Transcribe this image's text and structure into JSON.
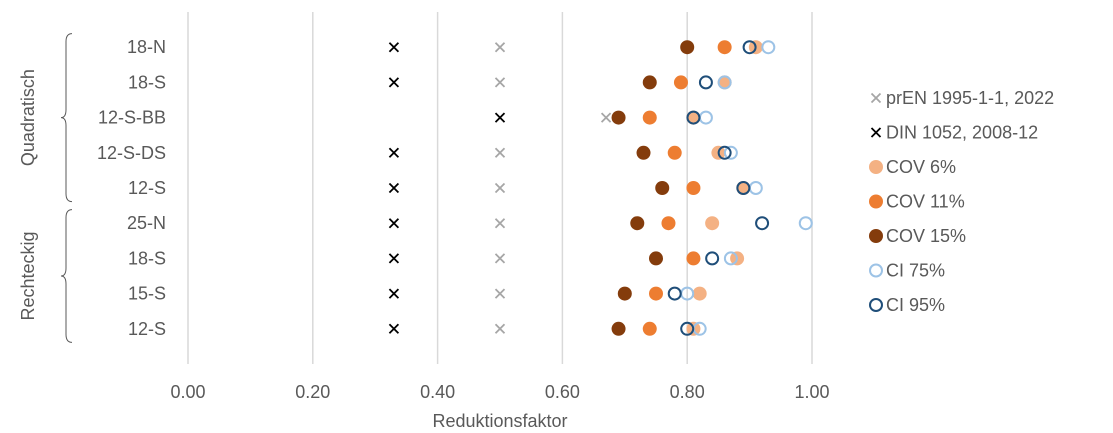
{
  "chart_data": {
    "type": "scatter",
    "title": "",
    "xlabel": "Reduktionsfaktor",
    "ylabel": "",
    "xlim": [
      0,
      1
    ],
    "xticks": [
      "0.00",
      "0.20",
      "0.40",
      "0.60",
      "0.80",
      "1.00"
    ],
    "xtick_values": [
      0,
      0.2,
      0.4,
      0.6,
      0.8,
      1.0
    ],
    "categories": [
      "18-N",
      "18-S",
      "12-S-BB",
      "12-S-DS",
      "12-S",
      "25-N",
      "18-S",
      "15-S",
      "12-S"
    ],
    "groups": [
      {
        "label": "Quadratisch",
        "from": 0,
        "to": 4
      },
      {
        "label": "Rechteckig",
        "from": 5,
        "to": 8
      }
    ],
    "grid": "vertical",
    "legend_position": "right",
    "series": [
      {
        "name": "prEN 1995-1-1, 2022",
        "marker": "x",
        "color": "#a6a6a6",
        "values": [
          0.5,
          0.5,
          0.67,
          0.5,
          0.5,
          0.5,
          0.5,
          0.5,
          0.5
        ]
      },
      {
        "name": "DIN 1052, 2008-12",
        "marker": "x",
        "color": "#000000",
        "values": [
          0.33,
          0.33,
          0.5,
          0.33,
          0.33,
          0.33,
          0.33,
          0.33,
          0.33
        ]
      },
      {
        "name": "COV 6%",
        "marker": "filled-circle",
        "color": "#f4b183",
        "values": [
          0.91,
          0.86,
          0.81,
          0.85,
          0.89,
          0.84,
          0.88,
          0.82,
          0.81
        ]
      },
      {
        "name": "COV 11%",
        "marker": "filled-circle",
        "color": "#ed7d31",
        "values": [
          0.86,
          0.79,
          0.74,
          0.78,
          0.81,
          0.77,
          0.81,
          0.75,
          0.74
        ]
      },
      {
        "name": "COV 15%",
        "marker": "filled-circle",
        "color": "#843c0c",
        "values": [
          0.8,
          0.74,
          0.69,
          0.73,
          0.76,
          0.72,
          0.75,
          0.7,
          0.69
        ]
      },
      {
        "name": "CI 75%",
        "marker": "open-circle",
        "color": "#9dc3e6",
        "values": [
          0.93,
          0.86,
          0.83,
          0.87,
          0.91,
          0.99,
          0.87,
          0.8,
          0.82
        ]
      },
      {
        "name": "CI 95%",
        "marker": "open-circle",
        "color": "#1f4e79",
        "values": [
          0.9,
          0.83,
          0.81,
          0.86,
          0.89,
          0.92,
          0.84,
          0.78,
          0.8
        ]
      }
    ]
  }
}
